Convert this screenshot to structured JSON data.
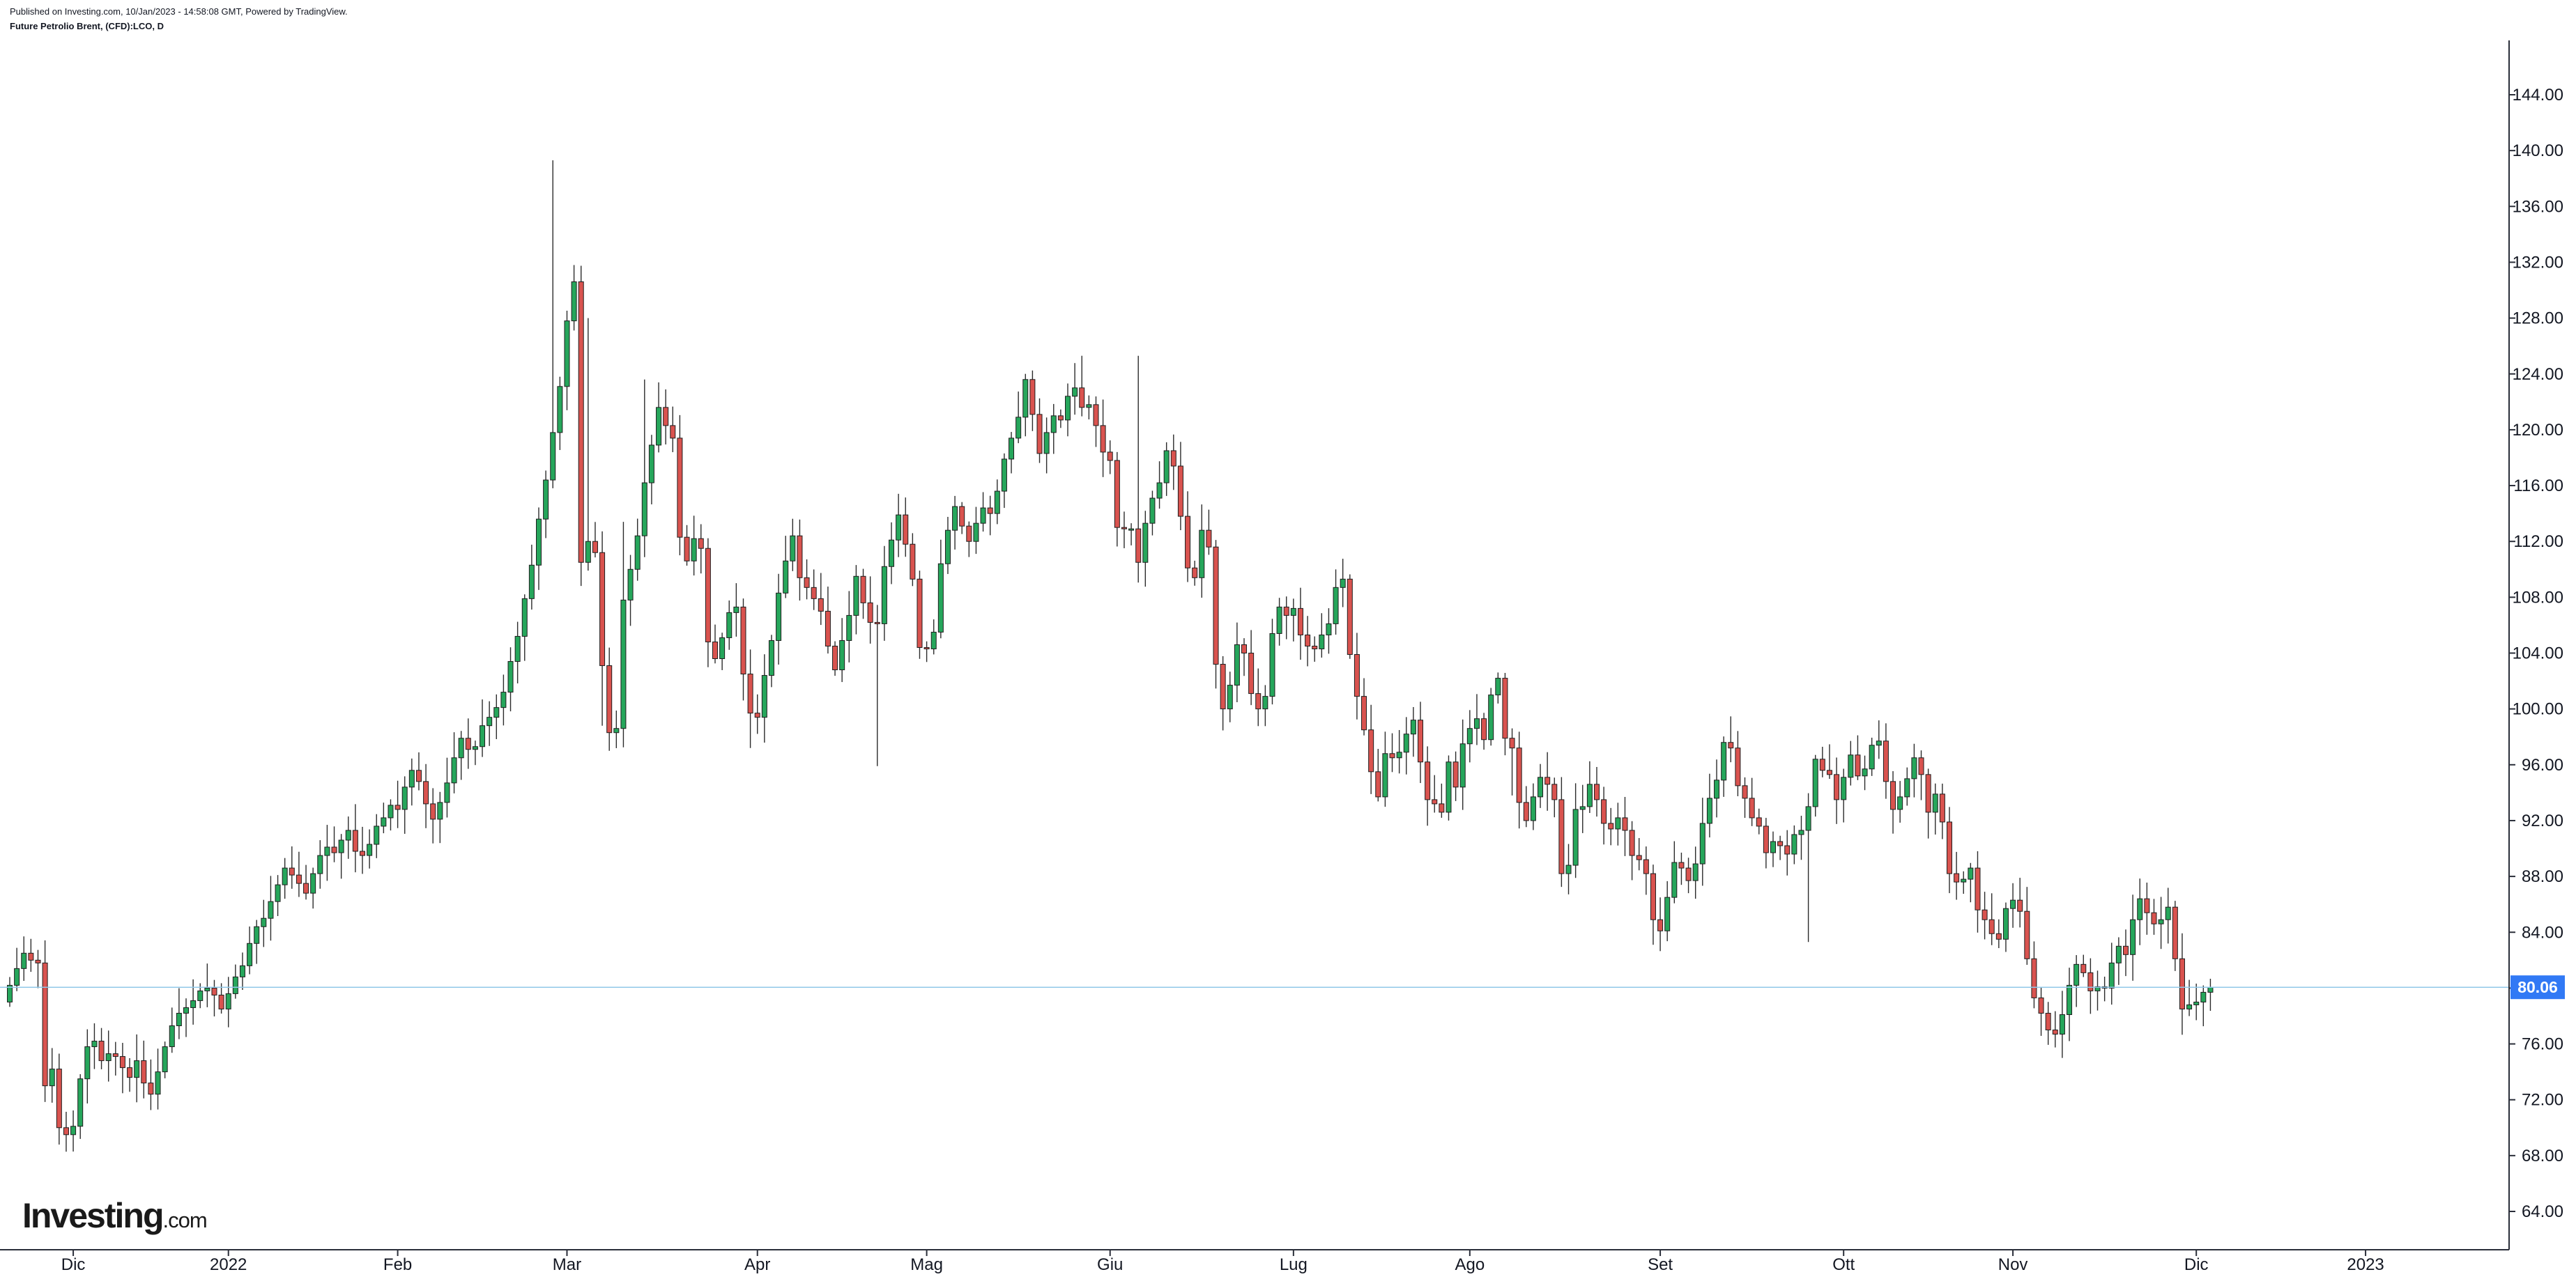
{
  "header": {
    "published": "Published on Investing.com, 10/Jan/2023 - 14:58:08 GMT, Powered by TradingView.",
    "instrument": "Future Petrolio Brent, (CFD):LCO, D"
  },
  "logo": {
    "brand": "Investing",
    "tld": ".com"
  },
  "colors": {
    "up": "#26a65b",
    "down": "#d9534f",
    "wick": "#2b2b2b",
    "last_line": "#90c8e8",
    "last_badge": "#3179f5"
  },
  "chart_data": {
    "type": "candlestick",
    "title": "Future Petrolio Brent, (CFD):LCO, D",
    "ylim": [
      61,
      149
    ],
    "y_ticks": [
      "64.00",
      "68.00",
      "72.00",
      "76.00",
      "80.00",
      "84.00",
      "88.00",
      "92.00",
      "96.00",
      "100.00",
      "104.00",
      "108.00",
      "112.00",
      "116.00",
      "120.00",
      "124.00",
      "128.00",
      "132.00",
      "136.00",
      "140.00",
      "144.00"
    ],
    "x_ticks": [
      {
        "label": "Dic",
        "index": 9
      },
      {
        "label": "2022",
        "index": 31
      },
      {
        "label": "Feb",
        "index": 55
      },
      {
        "label": "Mar",
        "index": 79
      },
      {
        "label": "Apr",
        "index": 106
      },
      {
        "label": "Mag",
        "index": 130
      },
      {
        "label": "Giu",
        "index": 156
      },
      {
        "label": "Lug",
        "index": 182
      },
      {
        "label": "Ago",
        "index": 207
      },
      {
        "label": "Set",
        "index": 234
      },
      {
        "label": "Ott",
        "index": 260
      },
      {
        "label": "Nov",
        "index": 284
      },
      {
        "label": "Dic",
        "index": 310
      },
      {
        "label": "2023",
        "index": 334
      }
    ],
    "last_price": "80.06",
    "close_series": [
      80.2,
      81.4,
      82.5,
      82.0,
      81.8,
      73.0,
      74.2,
      70.0,
      69.5,
      70.1,
      73.5,
      75.8,
      76.2,
      74.8,
      75.3,
      75.1,
      74.3,
      73.6,
      74.8,
      73.2,
      72.4,
      74.0,
      75.8,
      77.3,
      78.2,
      78.6,
      79.1,
      79.8,
      80.0,
      79.5,
      78.5,
      79.6,
      80.8,
      81.6,
      83.2,
      84.4,
      85.0,
      86.2,
      87.4,
      88.6,
      88.1,
      87.5,
      86.8,
      88.2,
      89.5,
      90.1,
      89.7,
      90.6,
      91.3,
      89.8,
      89.5,
      90.3,
      91.6,
      92.2,
      93.1,
      92.8,
      94.4,
      95.6,
      94.8,
      93.2,
      92.1,
      93.3,
      94.7,
      96.5,
      97.9,
      97.1,
      97.3,
      98.8,
      99.4,
      100.1,
      101.2,
      103.4,
      105.2,
      107.9,
      110.3,
      113.6,
      116.4,
      119.8,
      123.1,
      127.8,
      130.6,
      110.5,
      112.0,
      111.2,
      103.1,
      98.3,
      98.6,
      107.8,
      110.0,
      112.4,
      116.2,
      118.9,
      121.6,
      120.3,
      119.4,
      112.3,
      110.6,
      112.2,
      111.5,
      104.8,
      103.6,
      105.1,
      106.9,
      107.3,
      102.5,
      99.7,
      99.4,
      102.4,
      104.9,
      108.3,
      110.6,
      112.4,
      109.4,
      108.7,
      107.9,
      107.0,
      104.5,
      102.8,
      104.9,
      106.7,
      109.5,
      107.6,
      106.2,
      106.1,
      110.2,
      112.1,
      113.9,
      111.8,
      109.3,
      104.4,
      104.3,
      105.5,
      110.4,
      112.8,
      114.5,
      113.1,
      112.0,
      113.3,
      114.4,
      114.0,
      115.6,
      117.9,
      119.4,
      120.9,
      123.6,
      121.1,
      118.3,
      119.8,
      121.0,
      120.7,
      122.4,
      123.0,
      121.6,
      121.8,
      120.3,
      118.4,
      117.8,
      113.0,
      112.9,
      112.9,
      110.5,
      113.3,
      115.1,
      116.2,
      118.5,
      117.4,
      113.8,
      110.1,
      109.4,
      112.8,
      111.6,
      103.2,
      100.0,
      101.7,
      104.6,
      104.0,
      101.1,
      100.0,
      100.9,
      105.4,
      107.3,
      106.7,
      107.2,
      105.3,
      104.5,
      104.3,
      105.3,
      106.1,
      108.7,
      109.3,
      103.9,
      100.9,
      98.5,
      95.5,
      93.7,
      96.8,
      96.5,
      96.9,
      98.2,
      99.2,
      96.2,
      93.5,
      93.2,
      92.6,
      96.2,
      94.4,
      97.5,
      98.6,
      99.3,
      97.8,
      101.0,
      102.2,
      97.9,
      97.2,
      93.3,
      92.0,
      93.7,
      95.1,
      94.6,
      93.5,
      88.2,
      88.8,
      92.8,
      93.0,
      94.6,
      93.5,
      91.8,
      91.4,
      92.2,
      91.3,
      89.5,
      89.2,
      88.2,
      84.9,
      84.1,
      86.5,
      89.0,
      88.6,
      87.7,
      88.9,
      91.8,
      93.6,
      94.9,
      97.6,
      97.2,
      94.5,
      93.6,
      92.2,
      91.6,
      89.7,
      90.5,
      90.2,
      89.6,
      91.0,
      91.3,
      93.0,
      96.4,
      95.6,
      95.3,
      93.5,
      95.1,
      96.7,
      95.2,
      95.7,
      97.4,
      97.7,
      94.8,
      92.8,
      93.7,
      95.0,
      96.5,
      95.3,
      92.6,
      93.9,
      91.9,
      88.2,
      87.6,
      87.8,
      88.6,
      85.6,
      84.9,
      83.9,
      83.5,
      85.7,
      86.3,
      85.5,
      82.1,
      79.3,
      78.2,
      77.0,
      76.7,
      78.1,
      80.2,
      81.7,
      81.1,
      79.8,
      80.1,
      80.0,
      81.8,
      83.0,
      82.4,
      84.9,
      86.4,
      85.4,
      84.6,
      84.9,
      85.8,
      82.1,
      78.5,
      78.8,
      79.0,
      79.7,
      80.06
    ]
  }
}
